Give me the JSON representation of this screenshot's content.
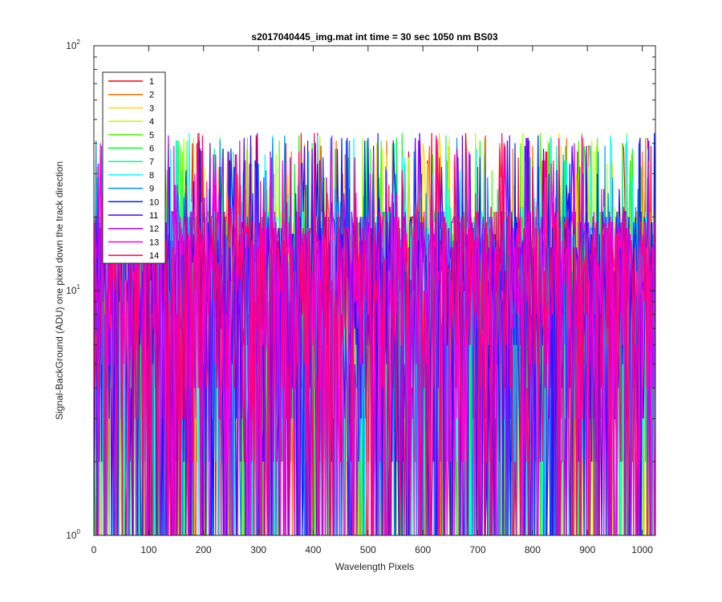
{
  "chart_data": {
    "type": "line",
    "title": "s2017040445_img.mat int time = 30 sec  1050 nm BS03",
    "xlabel": "Wavelength Pixels",
    "ylabel": "Signal-BackGround (ADU) one pixel down the track direction",
    "xlim": [
      0,
      1024
    ],
    "ylim": [
      1,
      100
    ],
    "yscale": "log",
    "x_ticks": [
      "0",
      "100",
      "200",
      "300",
      "400",
      "500",
      "600",
      "700",
      "800",
      "900",
      "1000"
    ],
    "y_ticks": [
      {
        "base": "10",
        "exp": "0"
      },
      {
        "base": "10",
        "exp": "1"
      },
      {
        "base": "10",
        "exp": "2"
      }
    ],
    "grid": false,
    "legend_position": "top-left",
    "noise_range_adu": [
      0,
      44
    ],
    "series": [
      {
        "name": "1",
        "color": "#ff0000"
      },
      {
        "name": "2",
        "color": "#ff6d00"
      },
      {
        "name": "3",
        "color": "#ffdb00"
      },
      {
        "name": "4",
        "color": "#b6ff00"
      },
      {
        "name": "5",
        "color": "#49ff00"
      },
      {
        "name": "6",
        "color": "#00ff24"
      },
      {
        "name": "7",
        "color": "#00ff92"
      },
      {
        "name": "8",
        "color": "#00ffff"
      },
      {
        "name": "9",
        "color": "#0092ff"
      },
      {
        "name": "10",
        "color": "#0024ff"
      },
      {
        "name": "11",
        "color": "#4900ff"
      },
      {
        "name": "12",
        "color": "#b600ff"
      },
      {
        "name": "13",
        "color": "#ff00db"
      },
      {
        "name": "14",
        "color": "#ff006d"
      }
    ]
  }
}
